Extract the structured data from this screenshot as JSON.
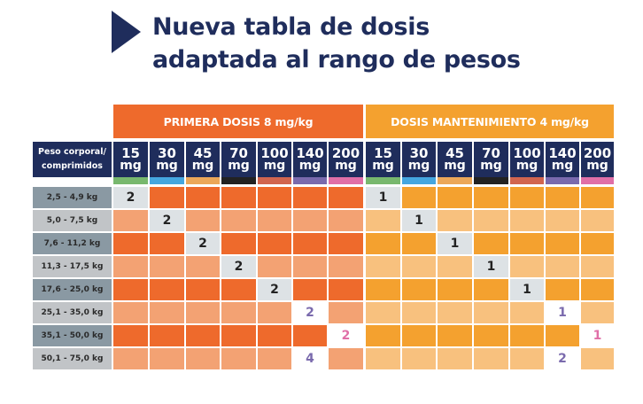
{
  "title": {
    "line1": "Nueva tabla de dosis",
    "line2": "adaptada al rango de pesos"
  },
  "table": {
    "corner_label_line1": "Peso corporal/",
    "corner_label_line2": "comprimidos",
    "groups": [
      {
        "label": "PRIMERA DOSIS 8 mg/kg",
        "color_dark": "#ee6a2c",
        "color_light": "#f3a273"
      },
      {
        "label": "DOSIS MANTENIMIENTO 4 mg/kg",
        "color_dark": "#f4a12f",
        "color_light": "#f8c17e"
      }
    ],
    "doses": [
      {
        "amount": "15",
        "unit": "mg",
        "color": "#78b86e"
      },
      {
        "amount": "30",
        "unit": "mg",
        "color": "#45a6df"
      },
      {
        "amount": "45",
        "unit": "mg",
        "color": "#eba759"
      },
      {
        "amount": "70",
        "unit": "mg",
        "color": "#222222"
      },
      {
        "amount": "100",
        "unit": "mg",
        "color": "#d1654f"
      },
      {
        "amount": "140",
        "unit": "mg",
        "color": "#7a6aad"
      },
      {
        "amount": "200",
        "unit": "mg",
        "color": "#e06fa7"
      }
    ],
    "rows": [
      {
        "weight": "2,5 - 4,9 kg",
        "first": [
          "2",
          "",
          "",
          "",
          "",
          "",
          ""
        ],
        "maint": [
          "1",
          "",
          "",
          "",
          "",
          "",
          ""
        ]
      },
      {
        "weight": "5,0 - 7,5 kg",
        "first": [
          "",
          "2",
          "",
          "",
          "",
          "",
          ""
        ],
        "maint": [
          "",
          "1",
          "",
          "",
          "",
          "",
          ""
        ]
      },
      {
        "weight": "7,6 - 11,2 kg",
        "first": [
          "",
          "",
          "2",
          "",
          "",
          "",
          ""
        ],
        "maint": [
          "",
          "",
          "1",
          "",
          "",
          "",
          ""
        ]
      },
      {
        "weight": "11,3 - 17,5 kg",
        "first": [
          "",
          "",
          "",
          "2",
          "",
          "",
          ""
        ],
        "maint": [
          "",
          "",
          "",
          "1",
          "",
          "",
          ""
        ]
      },
      {
        "weight": "17,6 - 25,0 kg",
        "first": [
          "",
          "",
          "",
          "",
          "2",
          "",
          ""
        ],
        "maint": [
          "",
          "",
          "",
          "",
          "1",
          "",
          ""
        ]
      },
      {
        "weight": "25,1 - 35,0 kg",
        "first": [
          "",
          "",
          "",
          "",
          "",
          "2",
          ""
        ],
        "maint": [
          "",
          "",
          "",
          "",
          "",
          "1",
          ""
        ]
      },
      {
        "weight": "35,1 - 50,0 kg",
        "first": [
          "",
          "",
          "",
          "",
          "",
          "",
          "2"
        ],
        "maint": [
          "",
          "",
          "",
          "",
          "",
          "",
          "1"
        ]
      },
      {
        "weight": "50,1 - 75,0 kg",
        "first": [
          "",
          "",
          "",
          "",
          "",
          "4",
          ""
        ],
        "maint": [
          "",
          "",
          "",
          "",
          "",
          "2",
          ""
        ]
      }
    ],
    "colors": {
      "header_navy": "#1f2d5c",
      "row_label_dark": "#8a99a3",
      "row_label_light": "#c1c4c7",
      "highlight_gray": "#dde2e5",
      "highlight_white": "#ffffff"
    }
  }
}
